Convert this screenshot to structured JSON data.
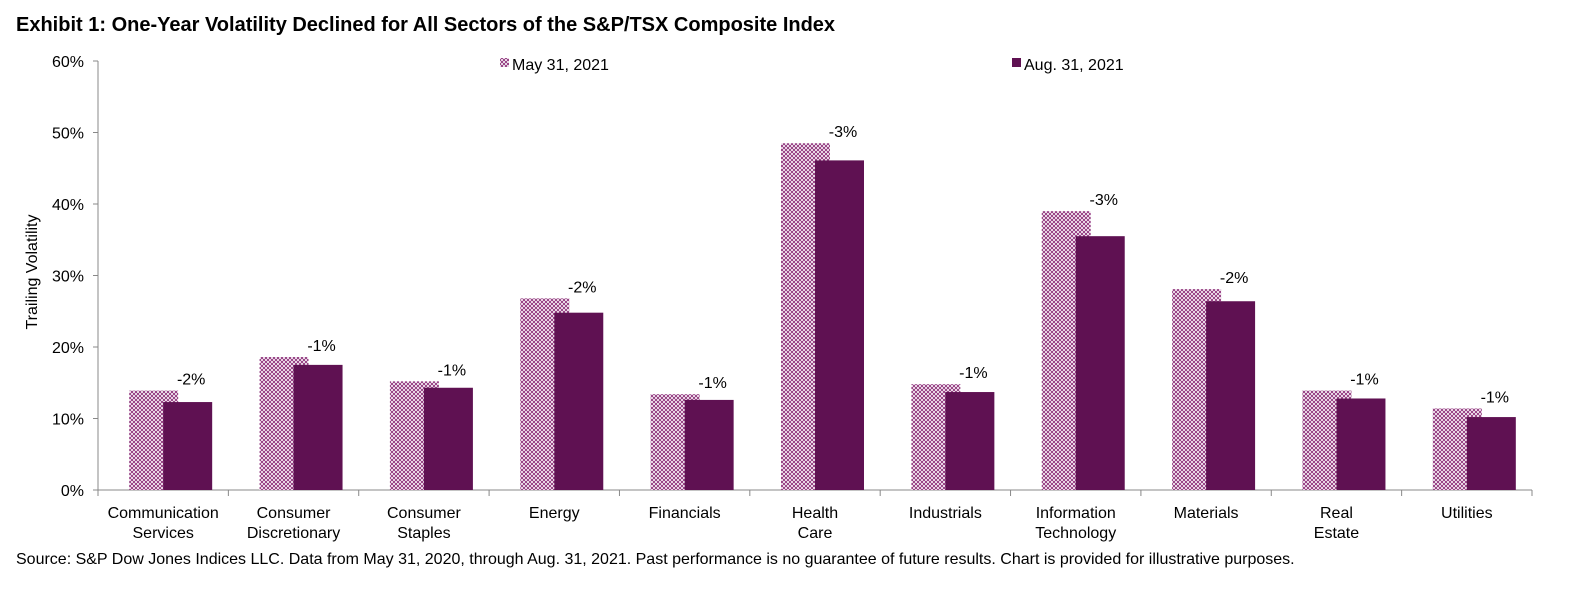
{
  "title": "Exhibit 1: One-Year Volatility Declined for All Sectors of the S&P/TSX Composite Index",
  "source": "Source: S&P Dow Jones Indices LLC. Data from May 31, 2020, through Aug. 31, 2021. Past performance is no guarantee of future results. Chart is provided for illustrative purposes.",
  "chart_data": {
    "type": "bar",
    "title": "Exhibit 1: One-Year Volatility Declined for All Sectors of the S&P/TSX Composite Index",
    "xlabel": "",
    "ylabel": "Trailing Volatility",
    "ylim": [
      0,
      60
    ],
    "yticks": [
      "0%",
      "10%",
      "20%",
      "30%",
      "40%",
      "50%",
      "60%"
    ],
    "grid": false,
    "legend_position": "top-center",
    "categories": [
      [
        "Communication",
        "Services"
      ],
      [
        "Consumer",
        "Discretionary"
      ],
      [
        "Consumer",
        "Staples"
      ],
      [
        "Energy"
      ],
      [
        "Financials"
      ],
      [
        "Health",
        "Care"
      ],
      [
        "Industrials"
      ],
      [
        "Information",
        "Technology"
      ],
      [
        "Materials"
      ],
      [
        "Real",
        "Estate"
      ],
      [
        "Utilities"
      ]
    ],
    "series": [
      {
        "name": "May 31, 2021",
        "color": "#6b1655",
        "pattern": "crosshatch",
        "values": [
          13.9,
          18.6,
          15.2,
          26.8,
          13.4,
          48.5,
          14.8,
          39.0,
          28.1,
          13.9,
          11.4
        ]
      },
      {
        "name": "Aug. 31, 2021",
        "color": "#5f1152",
        "pattern": "solid",
        "values": [
          12.3,
          17.5,
          14.3,
          24.8,
          12.6,
          46.1,
          13.7,
          35.5,
          26.4,
          12.8,
          10.2
        ]
      }
    ],
    "annotations": [
      "-2%",
      "-1%",
      "-1%",
      "-2%",
      "-1%",
      "-3%",
      "-1%",
      "-3%",
      "-2%",
      "-1%",
      "-1%"
    ]
  }
}
